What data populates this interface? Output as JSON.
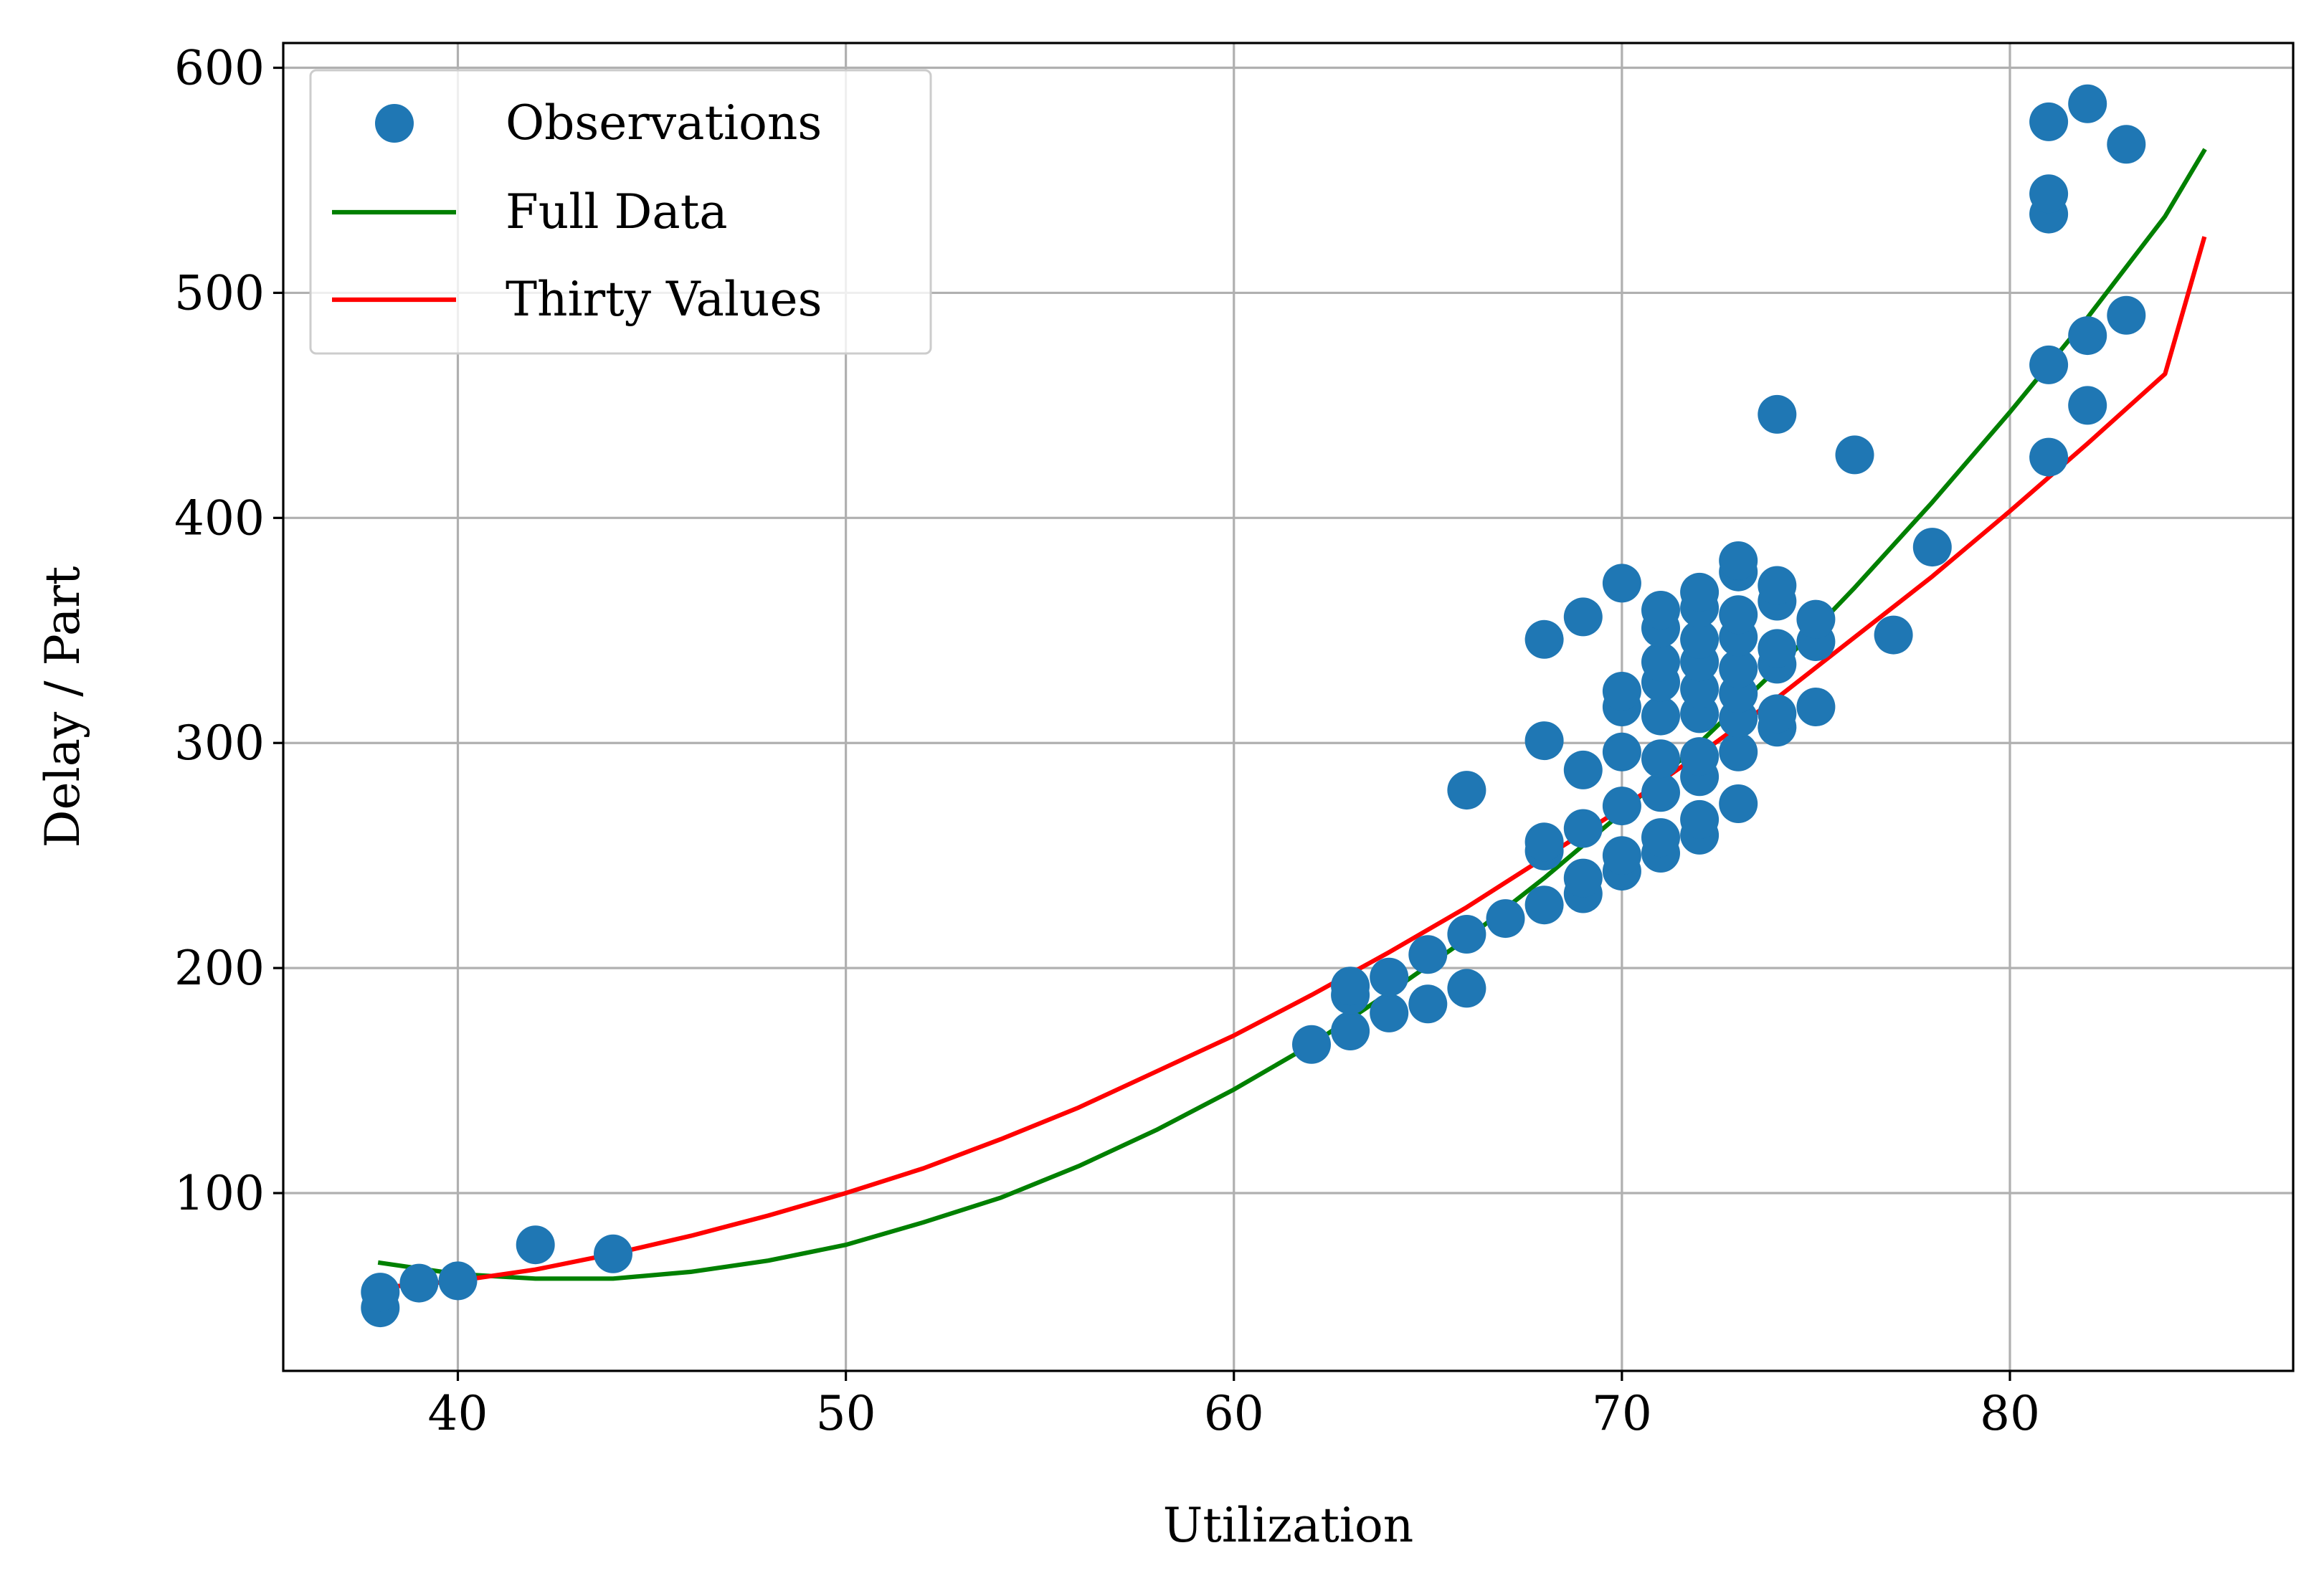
{
  "chart_data": {
    "type": "scatter",
    "title": "",
    "xlabel": "Utilization",
    "ylabel": "Delay / Part",
    "xlim": [
      35.5,
      87.3
    ],
    "ylim": [
      21,
      611
    ],
    "xticks": [
      40,
      50,
      60,
      70,
      80
    ],
    "yticks": [
      100,
      200,
      300,
      400,
      500,
      600
    ],
    "grid": true,
    "legend_position": "top-left",
    "series": [
      {
        "name": "Observations",
        "kind": "scatter",
        "color": "#1f77b4",
        "points": [
          [
            38,
            49
          ],
          [
            38,
            56
          ],
          [
            39,
            60
          ],
          [
            40,
            61
          ],
          [
            42,
            77
          ],
          [
            44,
            73
          ],
          [
            62,
            166
          ],
          [
            63,
            172
          ],
          [
            63,
            188
          ],
          [
            63,
            192
          ],
          [
            64,
            180
          ],
          [
            64,
            196
          ],
          [
            65,
            184
          ],
          [
            65,
            206
          ],
          [
            66,
            191
          ],
          [
            66,
            215
          ],
          [
            66,
            279
          ],
          [
            67,
            222
          ],
          [
            68,
            228
          ],
          [
            68,
            252
          ],
          [
            68,
            256
          ],
          [
            68,
            301
          ],
          [
            68,
            346
          ],
          [
            69,
            233
          ],
          [
            69,
            240
          ],
          [
            69,
            262
          ],
          [
            69,
            288
          ],
          [
            69,
            356
          ],
          [
            70,
            243
          ],
          [
            70,
            250
          ],
          [
            70,
            272
          ],
          [
            70,
            296
          ],
          [
            70,
            316
          ],
          [
            70,
            323
          ],
          [
            70,
            371
          ],
          [
            71,
            251
          ],
          [
            71,
            258
          ],
          [
            71,
            278
          ],
          [
            71,
            293
          ],
          [
            71,
            312
          ],
          [
            71,
            327
          ],
          [
            71,
            336
          ],
          [
            71,
            351
          ],
          [
            71,
            359
          ],
          [
            72,
            259
          ],
          [
            72,
            266
          ],
          [
            72,
            285
          ],
          [
            72,
            294
          ],
          [
            72,
            313
          ],
          [
            72,
            324
          ],
          [
            72,
            336
          ],
          [
            72,
            346
          ],
          [
            72,
            360
          ],
          [
            72,
            367
          ],
          [
            73,
            273
          ],
          [
            73,
            296
          ],
          [
            73,
            311
          ],
          [
            73,
            322
          ],
          [
            73,
            333
          ],
          [
            73,
            347
          ],
          [
            73,
            357
          ],
          [
            73,
            376
          ],
          [
            73,
            381
          ],
          [
            74,
            307
          ],
          [
            74,
            313
          ],
          [
            74,
            335
          ],
          [
            74,
            342
          ],
          [
            74,
            363
          ],
          [
            74,
            370
          ],
          [
            74,
            446
          ],
          [
            75,
            316
          ],
          [
            75,
            345
          ],
          [
            75,
            355
          ],
          [
            76,
            428
          ],
          [
            77,
            348
          ],
          [
            78,
            387
          ],
          [
            81,
            427
          ],
          [
            81,
            468
          ],
          [
            81,
            535
          ],
          [
            81,
            544
          ],
          [
            81,
            576
          ],
          [
            82,
            450
          ],
          [
            82,
            481
          ],
          [
            82,
            584
          ],
          [
            83,
            490
          ],
          [
            83,
            566
          ]
        ]
      },
      {
        "name": "Full Data",
        "kind": "line",
        "color": "#008000",
        "x": [
          38,
          40,
          42,
          44,
          46,
          48,
          50,
          52,
          54,
          56,
          58,
          60,
          62,
          64,
          66,
          68,
          70,
          72,
          74,
          76,
          78,
          80,
          82,
          84,
          85
        ],
        "y": [
          69,
          64,
          62,
          62,
          65,
          70,
          77,
          87,
          98,
          112,
          128,
          146,
          166,
          189,
          213,
          240,
          269,
          300,
          333,
          369,
          407,
          447,
          489,
          534,
          563
        ]
      },
      {
        "name": "Thirty Values",
        "kind": "line",
        "color": "#ff0000",
        "x": [
          38,
          40,
          42,
          44,
          46,
          48,
          50,
          52,
          54,
          56,
          58,
          60,
          62,
          64,
          66,
          68,
          70,
          72,
          74,
          76,
          78,
          80,
          82,
          84,
          85
        ],
        "y": [
          58,
          61,
          66,
          73,
          81,
          90,
          100,
          111,
          124,
          138,
          154,
          170,
          188,
          207,
          227,
          249,
          271,
          295,
          320,
          347,
          374,
          403,
          433,
          464,
          524
        ]
      }
    ]
  }
}
